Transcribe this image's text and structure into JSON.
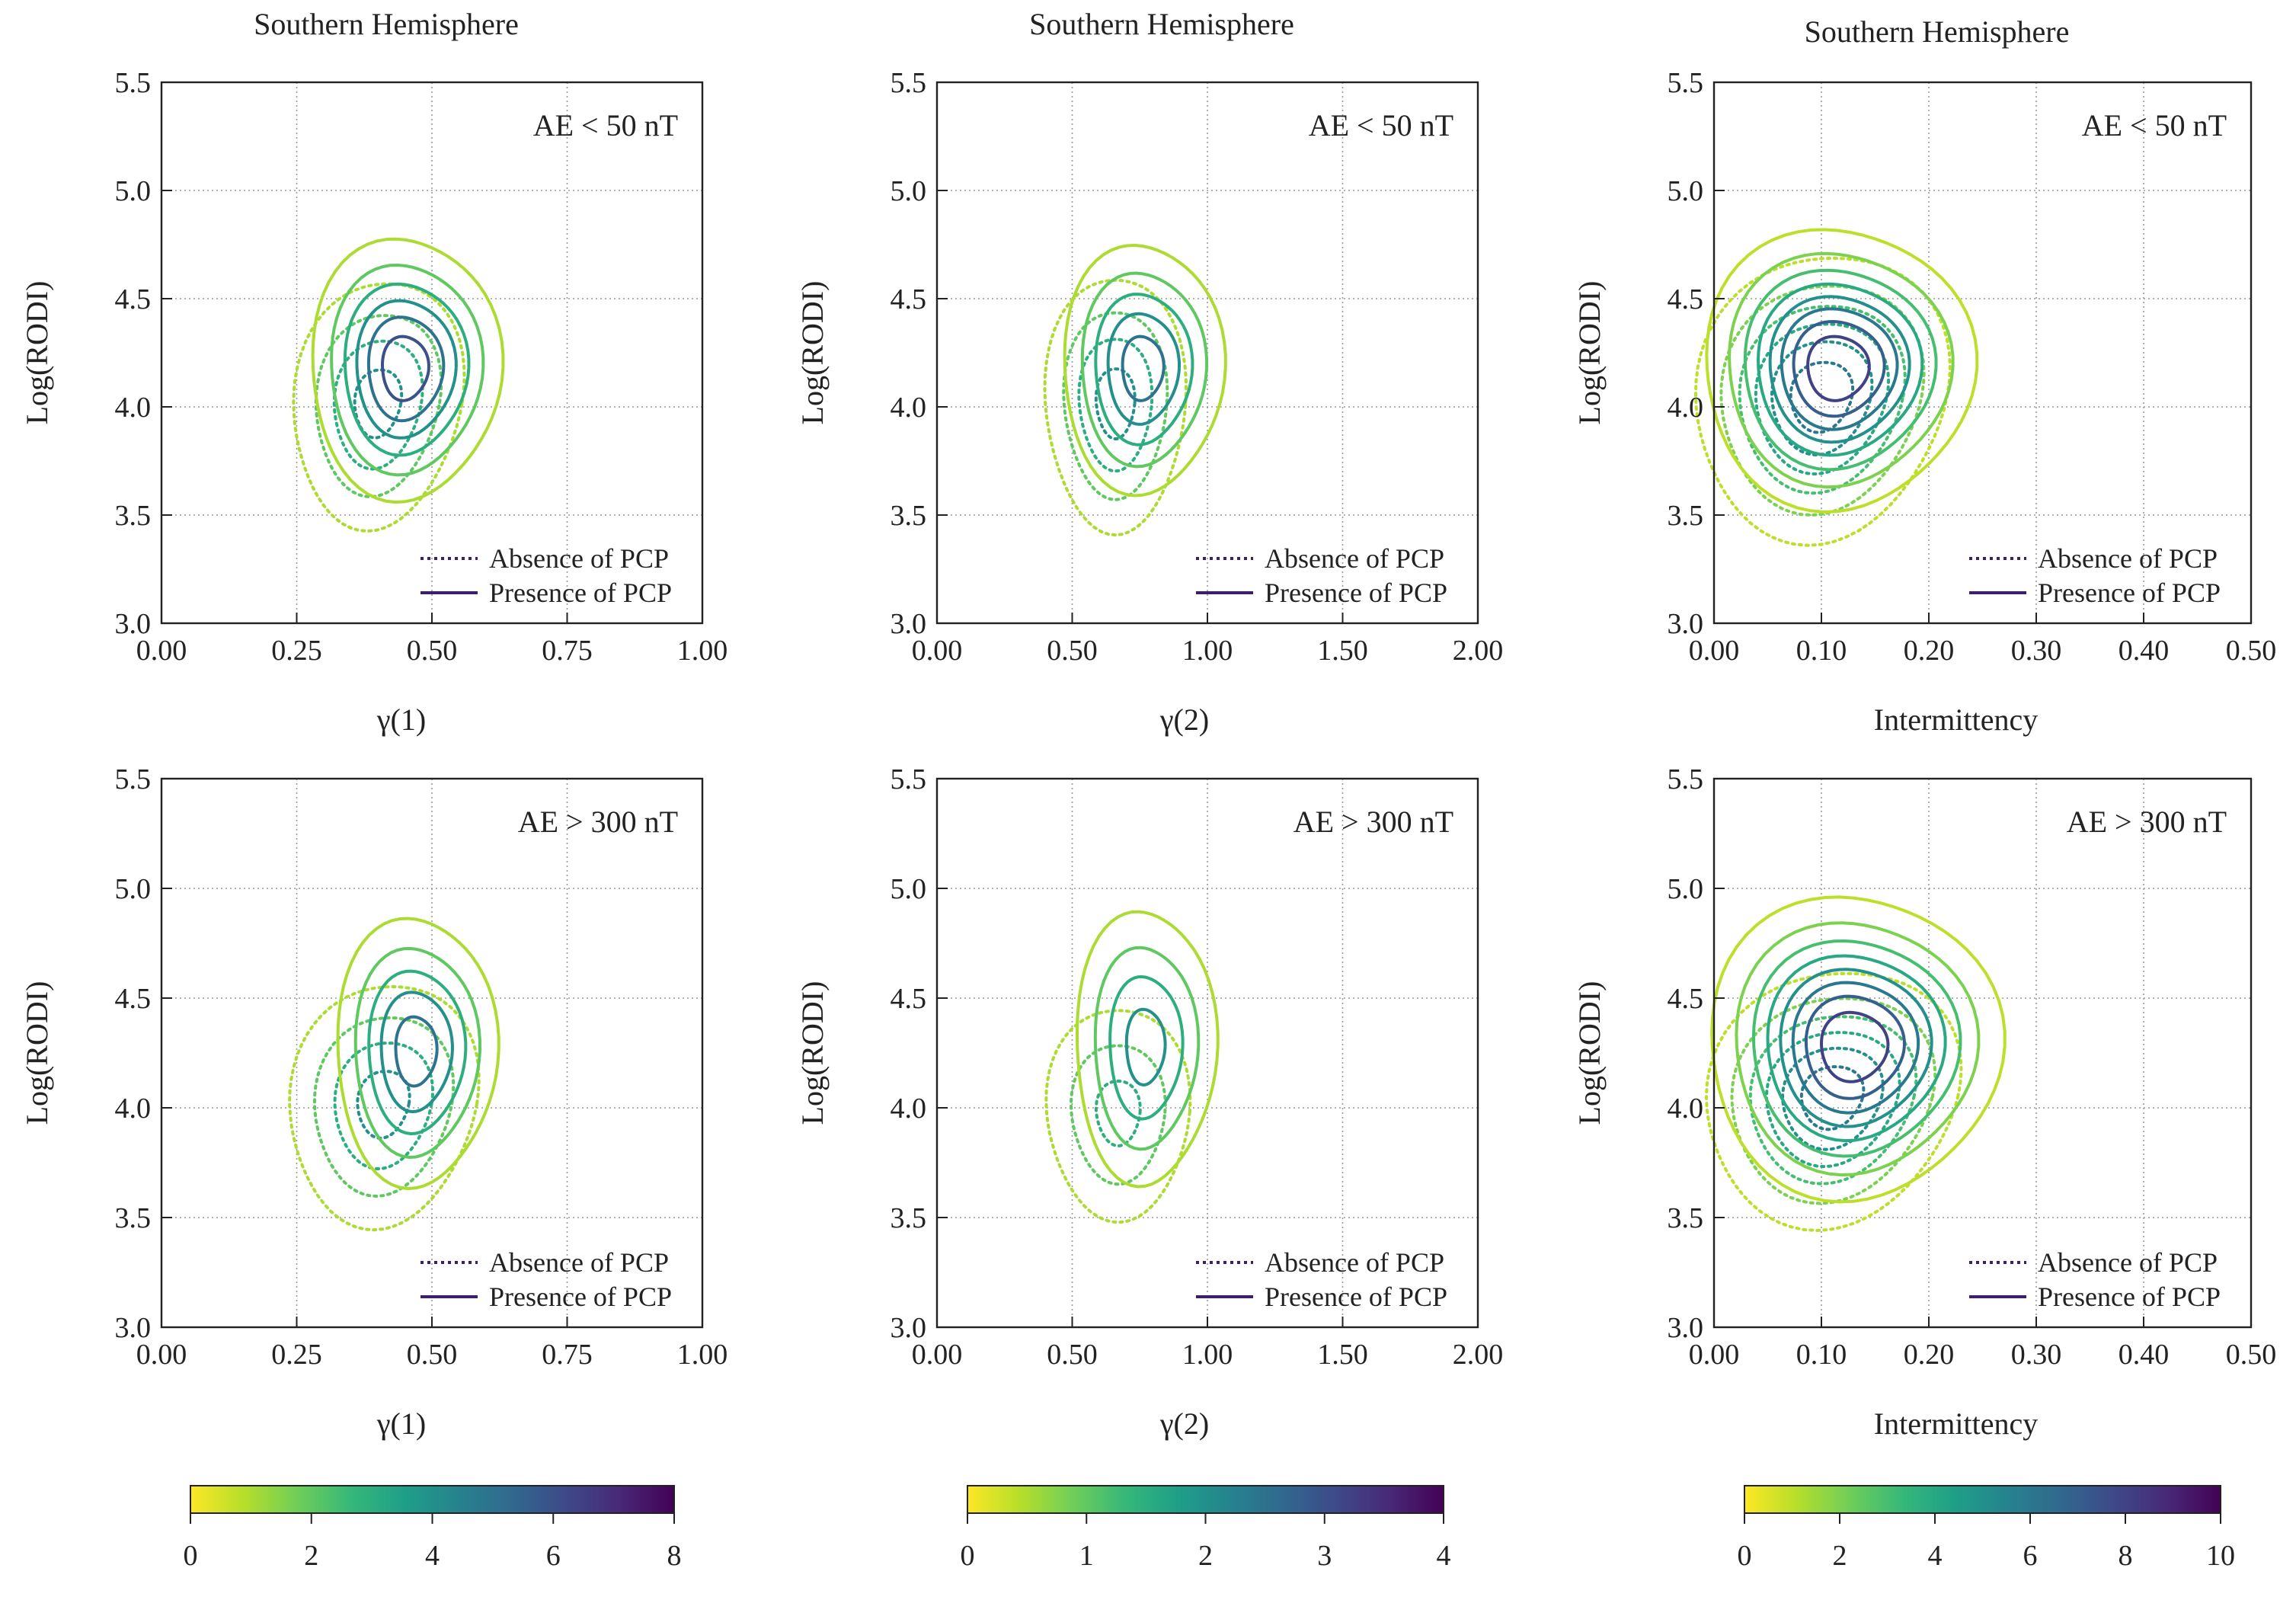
{
  "colors": {
    "grid": "#9a9a9a",
    "frame": "#222222",
    "legend_line": "#3b1f6e",
    "viridis": [
      "#fde725",
      "#b5de2b",
      "#6ece58",
      "#35b779",
      "#1f9e89",
      "#26828e",
      "#31688e",
      "#3e4989",
      "#482878",
      "#440154"
    ]
  },
  "chart_data": [
    {
      "type": "contour",
      "title": "Southern Hemisphere",
      "condition": "AE < 50 nT",
      "xlabel": "γ(1)",
      "ylabel": "Log(RODI)",
      "xlim": [
        0,
        1
      ],
      "ylim": [
        3.0,
        5.5
      ],
      "xticks": [
        0,
        0.25,
        0.5,
        0.75,
        1.0
      ],
      "xtick_labels": [
        "0.00",
        "0.25",
        "0.50",
        "0.75",
        "1.00"
      ],
      "yticks": [
        3.0,
        3.5,
        4.0,
        4.5,
        5.0,
        5.5
      ],
      "ytick_labels": [
        "3.0",
        "3.5",
        "4.0",
        "4.5",
        "5.0",
        "5.5"
      ],
      "legend": [
        "Absence of PCP",
        "Presence of PCP"
      ],
      "series": [
        {
          "name": "Absence of PCP",
          "style": "dotted",
          "cx": 0.4,
          "cy": 4.02,
          "sx": 0.09,
          "sy": 0.33,
          "tilt": 0.12,
          "levels": [
            1,
            2,
            3,
            4
          ]
        },
        {
          "name": "Presence of PCP",
          "style": "solid",
          "cx": 0.45,
          "cy": 4.18,
          "sx": 0.09,
          "sy": 0.31,
          "tilt": 0.0,
          "levels": [
            1,
            2,
            3,
            4,
            5,
            6
          ]
        }
      ]
    },
    {
      "type": "contour",
      "title": "Southern Hemisphere",
      "condition": "AE < 50 nT",
      "xlabel": "γ(2)",
      "ylabel": "Log(RODI)",
      "xlim": [
        0,
        2
      ],
      "ylim": [
        3.0,
        5.5
      ],
      "xticks": [
        0,
        0.5,
        1.0,
        1.5,
        2.0
      ],
      "xtick_labels": [
        "0.00",
        "0.50",
        "1.00",
        "1.50",
        "2.00"
      ],
      "yticks": [
        3.0,
        3.5,
        4.0,
        4.5,
        5.0,
        5.5
      ],
      "ytick_labels": [
        "3.0",
        "3.5",
        "4.0",
        "4.5",
        "5.0",
        "5.5"
      ],
      "legend": [
        "Absence of PCP",
        "Presence of PCP"
      ],
      "series": [
        {
          "name": "Absence of PCP",
          "style": "dotted",
          "cx": 0.66,
          "cy": 4.02,
          "sx": 0.15,
          "sy": 0.34,
          "tilt": 0.0,
          "levels": [
            0.5,
            1.0,
            1.5,
            2.0
          ]
        },
        {
          "name": "Presence of PCP",
          "style": "solid",
          "cx": 0.76,
          "cy": 4.18,
          "sx": 0.16,
          "sy": 0.31,
          "tilt": 0.0,
          "levels": [
            0.5,
            1.0,
            1.5,
            2.0,
            2.5
          ]
        }
      ]
    },
    {
      "type": "contour",
      "title": "Southern Hemisphere",
      "condition": "AE < 50 nT",
      "xlabel": "Intermittency",
      "ylabel": "Log(RODI)",
      "xlim": [
        0,
        0.5
      ],
      "ylim": [
        3.0,
        5.5
      ],
      "xticks": [
        0,
        0.1,
        0.2,
        0.3,
        0.4,
        0.5
      ],
      "xtick_labels": [
        "0.00",
        "0.10",
        "0.20",
        "0.30",
        "0.40",
        "0.50"
      ],
      "yticks": [
        3.0,
        3.5,
        4.0,
        4.5,
        5.0,
        5.5
      ],
      "ytick_labels": [
        "3.0",
        "3.5",
        "4.0",
        "4.5",
        "5.0",
        "5.5"
      ],
      "legend": [
        "Absence of PCP",
        "Presence of PCP"
      ],
      "series": [
        {
          "name": "Absence of PCP",
          "style": "dotted",
          "cx": 0.1,
          "cy": 4.05,
          "sx": 0.06,
          "sy": 0.34,
          "tilt": 0.1,
          "levels": [
            1,
            2,
            3,
            4,
            5,
            6
          ]
        },
        {
          "name": "Presence of PCP",
          "style": "solid",
          "cx": 0.115,
          "cy": 4.18,
          "sx": 0.06,
          "sy": 0.31,
          "tilt": 0.0,
          "levels": [
            1,
            2,
            3,
            4,
            5,
            6,
            7,
            8
          ]
        }
      ]
    },
    {
      "type": "contour",
      "title": "",
      "condition": "AE > 300 nT",
      "xlabel": "γ(1)",
      "ylabel": "Log(RODI)",
      "xlim": [
        0,
        1
      ],
      "ylim": [
        3.0,
        5.5
      ],
      "xticks": [
        0,
        0.25,
        0.5,
        0.75,
        1.0
      ],
      "xtick_labels": [
        "0.00",
        "0.25",
        "0.50",
        "0.75",
        "1.00"
      ],
      "yticks": [
        3.0,
        3.5,
        4.0,
        4.5,
        5.0,
        5.5
      ],
      "ytick_labels": [
        "3.0",
        "3.5",
        "4.0",
        "4.5",
        "5.0",
        "5.5"
      ],
      "legend": [
        "Absence of PCP",
        "Presence of PCP"
      ],
      "series": [
        {
          "name": "Absence of PCP",
          "style": "dotted",
          "cx": 0.41,
          "cy": 4.02,
          "sx": 0.1,
          "sy": 0.32,
          "tilt": 0.1,
          "levels": [
            1,
            2,
            3,
            4
          ]
        },
        {
          "name": "Presence of PCP",
          "style": "solid",
          "cx": 0.47,
          "cy": 4.26,
          "sx": 0.08,
          "sy": 0.33,
          "tilt": 0.0,
          "levels": [
            1,
            2,
            3,
            4,
            5
          ]
        }
      ]
    },
    {
      "type": "contour",
      "title": "",
      "condition": "AE > 300 nT",
      "xlabel": "γ(2)",
      "ylabel": "Log(RODI)",
      "xlim": [
        0,
        2
      ],
      "ylim": [
        3.0,
        5.5
      ],
      "xticks": [
        0,
        0.5,
        1.0,
        1.5,
        2.0
      ],
      "xtick_labels": [
        "0.00",
        "0.50",
        "1.00",
        "1.50",
        "2.00"
      ],
      "yticks": [
        3.0,
        3.5,
        4.0,
        4.5,
        5.0,
        5.5
      ],
      "ytick_labels": [
        "3.0",
        "3.5",
        "4.0",
        "4.5",
        "5.0",
        "5.5"
      ],
      "legend": [
        "Absence of PCP",
        "Presence of PCP"
      ],
      "series": [
        {
          "name": "Absence of PCP",
          "style": "dotted",
          "cx": 0.67,
          "cy": 3.98,
          "sx": 0.17,
          "sy": 0.31,
          "tilt": 0.0,
          "levels": [
            0.5,
            1.0,
            1.5
          ]
        },
        {
          "name": "Presence of PCP",
          "style": "solid",
          "cx": 0.77,
          "cy": 4.28,
          "sx": 0.15,
          "sy": 0.36,
          "tilt": 0.0,
          "levels": [
            0.5,
            1.0,
            1.5,
            2.0
          ]
        }
      ]
    },
    {
      "type": "contour",
      "title": "",
      "condition": "AE > 300 nT",
      "xlabel": "Intermittency",
      "ylabel": "Log(RODI)",
      "xlim": [
        0,
        0.5
      ],
      "ylim": [
        3.0,
        5.5
      ],
      "xticks": [
        0,
        0.1,
        0.2,
        0.3,
        0.4,
        0.5
      ],
      "xtick_labels": [
        "0.00",
        "0.10",
        "0.20",
        "0.30",
        "0.40",
        "0.50"
      ],
      "yticks": [
        3.0,
        3.5,
        4.0,
        4.5,
        5.0,
        5.5
      ],
      "ytick_labels": [
        "3.0",
        "3.5",
        "4.0",
        "4.5",
        "5.0",
        "5.5"
      ],
      "legend": [
        "Absence of PCP",
        "Presence of PCP"
      ],
      "series": [
        {
          "name": "Absence of PCP",
          "style": "dotted",
          "cx": 0.11,
          "cy": 4.05,
          "sx": 0.06,
          "sy": 0.3,
          "tilt": 0.12,
          "levels": [
            1,
            2,
            3,
            4,
            5,
            6
          ]
        },
        {
          "name": "Presence of PCP",
          "style": "solid",
          "cx": 0.13,
          "cy": 4.28,
          "sx": 0.065,
          "sy": 0.33,
          "tilt": 0.0,
          "levels": [
            1,
            2,
            3,
            4,
            5,
            6,
            7,
            8
          ]
        }
      ]
    }
  ],
  "colorbars": [
    {
      "min": 0,
      "max": 8,
      "ticks": [
        0,
        2,
        4,
        6,
        8
      ],
      "tick_labels": [
        "0",
        "2",
        "4",
        "6",
        "8"
      ]
    },
    {
      "min": 0,
      "max": 4,
      "ticks": [
        0,
        1,
        2,
        3,
        4
      ],
      "tick_labels": [
        "0",
        "1",
        "2",
        "3",
        "4"
      ]
    },
    {
      "min": 0,
      "max": 10,
      "ticks": [
        0,
        2,
        4,
        6,
        8,
        10
      ],
      "tick_labels": [
        "0",
        "2",
        "4",
        "6",
        "8",
        "10"
      ]
    }
  ]
}
